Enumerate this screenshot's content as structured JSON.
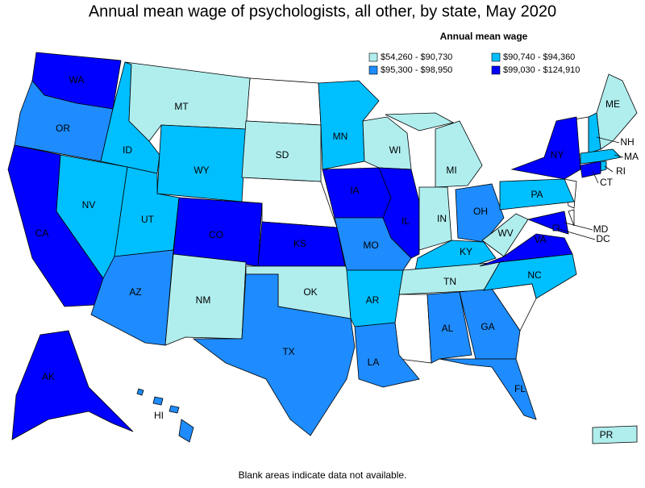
{
  "title": "Annual mean wage of psychologists, all other, by state, May 2020",
  "legend": {
    "title": "Annual mean wage",
    "bins": [
      {
        "label": "$54,260 - $90,730",
        "color": "#b0eeee"
      },
      {
        "label": "$90,740 - $94,360",
        "color": "#00bfff"
      },
      {
        "label": "$95,300 - $98,950",
        "color": "#1e8cff"
      },
      {
        "label": "$99,030 - $124,910",
        "color": "#0000ff"
      }
    ]
  },
  "states": [
    {
      "label": "WA",
      "bin": 3
    },
    {
      "label": "OR",
      "bin": 2
    },
    {
      "label": "CA",
      "bin": 3
    },
    {
      "label": "NV",
      "bin": 1
    },
    {
      "label": "ID",
      "bin": 1
    },
    {
      "label": "MT",
      "bin": 0
    },
    {
      "label": "WY",
      "bin": 1
    },
    {
      "label": "UT",
      "bin": 1
    },
    {
      "label": "AZ",
      "bin": 2
    },
    {
      "label": "CO",
      "bin": 3
    },
    {
      "label": "NM",
      "bin": 0
    },
    {
      "label": "SD",
      "bin": 0
    },
    {
      "label": "KS",
      "bin": 3
    },
    {
      "label": "OK",
      "bin": 0
    },
    {
      "label": "TX",
      "bin": 2
    },
    {
      "label": "MN",
      "bin": 1
    },
    {
      "label": "IA",
      "bin": 3
    },
    {
      "label": "MO",
      "bin": 2
    },
    {
      "label": "AR",
      "bin": 1
    },
    {
      "label": "LA",
      "bin": 2
    },
    {
      "label": "WI",
      "bin": 0
    },
    {
      "label": "IL",
      "bin": 3
    },
    {
      "label": "MI",
      "bin": 0
    },
    {
      "label": "IN",
      "bin": 0
    },
    {
      "label": "OH",
      "bin": 2
    },
    {
      "label": "KY",
      "bin": 1
    },
    {
      "label": "TN",
      "bin": 0
    },
    {
      "label": "AL",
      "bin": 2
    },
    {
      "label": "GA",
      "bin": 2
    },
    {
      "label": "FL",
      "bin": 2
    },
    {
      "label": "WV",
      "bin": 0
    },
    {
      "label": "VA",
      "bin": 3
    },
    {
      "label": "NC",
      "bin": 1
    },
    {
      "label": "PA",
      "bin": 1
    },
    {
      "label": "NY",
      "bin": 3
    },
    {
      "label": "ME",
      "bin": 0
    },
    {
      "label": "NH",
      "bin": 1
    },
    {
      "label": "MA",
      "bin": 1
    },
    {
      "label": "RI",
      "bin": 1
    },
    {
      "label": "CT",
      "bin": 3
    },
    {
      "label": "MD",
      "bin": 3
    },
    {
      "label": "DC",
      "bin": 3
    },
    {
      "label": "AK",
      "bin": 3
    },
    {
      "label": "HI",
      "bin": 2
    },
    {
      "label": "PR",
      "bin": 0
    }
  ],
  "footnote": "Blank areas indicate data not available."
}
